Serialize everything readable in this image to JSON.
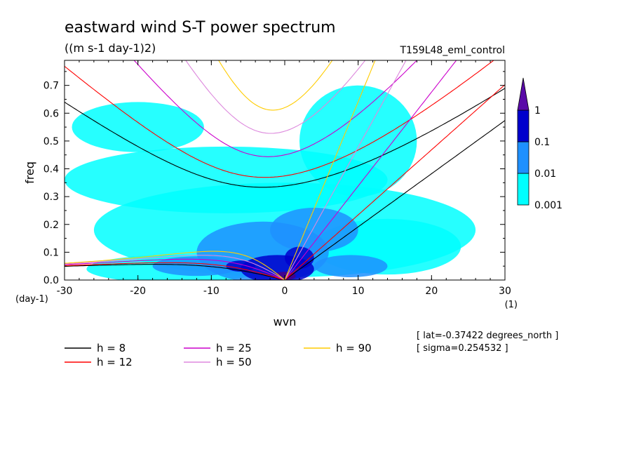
{
  "chart_data": {
    "type": "heatmap",
    "title": "eastward wind S-T power spectrum",
    "units": "((m s-1 day-1)2)",
    "run_name": "T159L48_eml_control",
    "xlabel": "wvn",
    "ylabel": "freq",
    "x_unit": "(1)",
    "y_unit": "(day-1)",
    "xlim": [
      -30,
      30
    ],
    "ylim": [
      0,
      0.79
    ],
    "x_ticks": [
      -30,
      -20,
      -10,
      0,
      10,
      20,
      30
    ],
    "x_tick_labels": [
      "-30",
      "-20",
      "-10",
      "0",
      "10",
      "20",
      "30"
    ],
    "y_ticks": [
      0,
      0.1,
      0.2,
      0.3,
      0.4,
      0.5,
      0.6,
      0.7
    ],
    "y_tick_labels": [
      "0.0",
      "0.1",
      "0.2",
      "0.3",
      "0.4",
      "0.5",
      "0.6",
      "0.7"
    ],
    "colorbar": {
      "levels": [
        "0.001",
        "0.01",
        "0.1",
        "1"
      ],
      "colors": [
        "#00ffff",
        "#1e90ff",
        "#0000cd",
        "#5a0aa8"
      ]
    },
    "contours": {
      "level_colors": [
        "#00ffff",
        "#1e90ff",
        "#0000cd",
        "#4b0082"
      ],
      "blobs": [
        {
          "k": 0,
          "f": 0.18,
          "rk": 26,
          "rf": 0.17,
          "level": 0
        },
        {
          "k": -8,
          "f": 0.36,
          "rk": 22,
          "rf": 0.12,
          "level": 0
        },
        {
          "k": -20,
          "f": 0.55,
          "rk": 9,
          "rf": 0.09,
          "level": 0
        },
        {
          "k": -15,
          "f": 0.04,
          "rk": 12,
          "rf": 0.05,
          "level": 0
        },
        {
          "k": 10,
          "f": 0.5,
          "rk": 8,
          "rf": 0.2,
          "level": 0
        },
        {
          "k": 14,
          "f": 0.12,
          "rk": 10,
          "rf": 0.1,
          "level": 0
        },
        {
          "k": -3,
          "f": 0.1,
          "rk": 9,
          "rf": 0.11,
          "level": 1
        },
        {
          "k": 4,
          "f": 0.18,
          "rk": 6,
          "rf": 0.08,
          "level": 1
        },
        {
          "k": -12,
          "f": 0.05,
          "rk": 6,
          "rf": 0.035,
          "level": 1
        },
        {
          "k": 9,
          "f": 0.05,
          "rk": 5,
          "rf": 0.04,
          "level": 1
        },
        {
          "k": -1,
          "f": 0.04,
          "rk": 5,
          "rf": 0.05,
          "level": 2
        },
        {
          "k": 2,
          "f": 0.08,
          "rk": 2,
          "rf": 0.04,
          "level": 2
        },
        {
          "k": -6,
          "f": 0.05,
          "rk": 2,
          "rf": 0.02,
          "level": 2
        },
        {
          "k": 0,
          "f": 0.015,
          "rk": 1.5,
          "rf": 0.015,
          "level": 3
        }
      ]
    },
    "series": [
      {
        "name": "h = 8",
        "equivalent_depth": 8,
        "color": "#000000"
      },
      {
        "name": "h = 12",
        "equivalent_depth": 12,
        "color": "#ff0000"
      },
      {
        "name": "h = 25",
        "equivalent_depth": 25,
        "color": "#cc00cc"
      },
      {
        "name": "h = 50",
        "equivalent_depth": 50,
        "color": "#dd88dd"
      },
      {
        "name": "h = 90",
        "equivalent_depth": 90,
        "color": "#ffcc00"
      }
    ],
    "dispersion_curves": {
      "types": [
        "equatorial Kelvin",
        "n=1 inertio-gravity",
        "n=1 equatorial Rossby"
      ]
    },
    "annotations": {
      "lat": "[ lat=-0.37422 degrees_north ]",
      "sigma": "[ sigma=0.254532 ]"
    }
  }
}
